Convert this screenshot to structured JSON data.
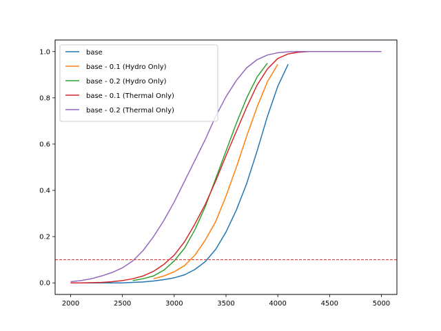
{
  "chart_data": {
    "type": "line",
    "title": "",
    "xlabel": "",
    "ylabel": "",
    "xlim": [
      1850,
      5150
    ],
    "ylim": [
      -0.05,
      1.05
    ],
    "xticks": [
      2000,
      2500,
      3000,
      3500,
      4000,
      4500,
      5000
    ],
    "yticks": [
      0.0,
      0.2,
      0.4,
      0.6,
      0.8,
      1.0
    ],
    "xtick_labels": [
      "2000",
      "2500",
      "3000",
      "3500",
      "4000",
      "4500",
      "5000"
    ],
    "ytick_labels": [
      "0.0",
      "0.2",
      "0.4",
      "0.6",
      "0.8",
      "1.0"
    ],
    "grid": false,
    "legend_position": "top-left",
    "threshold_line": {
      "y": 0.1,
      "color": "#d62728",
      "style": "dashed"
    },
    "series": [
      {
        "name": "base",
        "color": "#1f77b4",
        "x": [
          2000,
          2100,
          2200,
          2300,
          2400,
          2500,
          2600,
          2700,
          2800,
          2900,
          3000,
          3100,
          3200,
          3300,
          3400,
          3500,
          3600,
          3700,
          3800,
          3900,
          4000,
          4100
        ],
        "y": [
          0.0,
          0.0,
          0.0,
          0.0,
          0.0,
          0.0,
          0.002,
          0.004,
          0.008,
          0.014,
          0.022,
          0.035,
          0.058,
          0.092,
          0.145,
          0.22,
          0.315,
          0.43,
          0.57,
          0.72,
          0.85,
          0.945
        ]
      },
      {
        "name": "base - 0.1 (Hydro Only)",
        "color": "#ff7f0e",
        "x": [
          2800,
          2900,
          3000,
          3100,
          3200,
          3300,
          3400,
          3500,
          3600,
          3700,
          3800,
          3900,
          4000
        ],
        "y": [
          0.018,
          0.03,
          0.048,
          0.075,
          0.12,
          0.185,
          0.265,
          0.375,
          0.5,
          0.635,
          0.76,
          0.87,
          0.945
        ]
      },
      {
        "name": "base - 0.2 (Hydro Only)",
        "color": "#2ca02c",
        "x": [
          2600,
          2700,
          2800,
          2900,
          3000,
          3100,
          3200,
          3300,
          3400,
          3500,
          3600,
          3700,
          3800,
          3900
        ],
        "y": [
          0.01,
          0.018,
          0.03,
          0.055,
          0.095,
          0.15,
          0.23,
          0.33,
          0.45,
          0.57,
          0.69,
          0.8,
          0.89,
          0.95
        ]
      },
      {
        "name": "base - 0.1 (Thermal Only)",
        "color": "#d62728",
        "x": [
          2000,
          2100,
          2200,
          2300,
          2400,
          2500,
          2600,
          2700,
          2800,
          2900,
          3000,
          3100,
          3200,
          3300,
          3400,
          3500,
          3600,
          3700,
          3800,
          3900,
          4000,
          4100,
          4200,
          4300,
          4400,
          4500,
          4600,
          4700,
          4800,
          4900,
          5000
        ],
        "y": [
          0.0,
          0.0,
          0.001,
          0.002,
          0.005,
          0.01,
          0.018,
          0.03,
          0.05,
          0.08,
          0.12,
          0.178,
          0.255,
          0.34,
          0.44,
          0.55,
          0.655,
          0.76,
          0.855,
          0.925,
          0.97,
          0.99,
          0.997,
          1.0,
          1.0,
          1.0,
          1.0,
          1.0,
          1.0,
          1.0,
          1.0
        ]
      },
      {
        "name": "base - 0.2 (Thermal Only)",
        "color": "#9467bd",
        "x": [
          2000,
          2100,
          2200,
          2300,
          2400,
          2500,
          2600,
          2700,
          2800,
          2900,
          3000,
          3100,
          3200,
          3300,
          3400,
          3500,
          3600,
          3700,
          3800,
          3900,
          4000,
          4100,
          4200,
          4300,
          4400,
          4500,
          4600,
          4700,
          4800,
          4900,
          5000
        ],
        "y": [
          0.005,
          0.01,
          0.018,
          0.03,
          0.045,
          0.065,
          0.095,
          0.14,
          0.2,
          0.27,
          0.35,
          0.44,
          0.53,
          0.62,
          0.72,
          0.805,
          0.875,
          0.93,
          0.965,
          0.985,
          0.995,
          0.999,
          1.0,
          1.0,
          1.0,
          1.0,
          1.0,
          1.0,
          1.0,
          1.0,
          1.0
        ]
      }
    ]
  }
}
